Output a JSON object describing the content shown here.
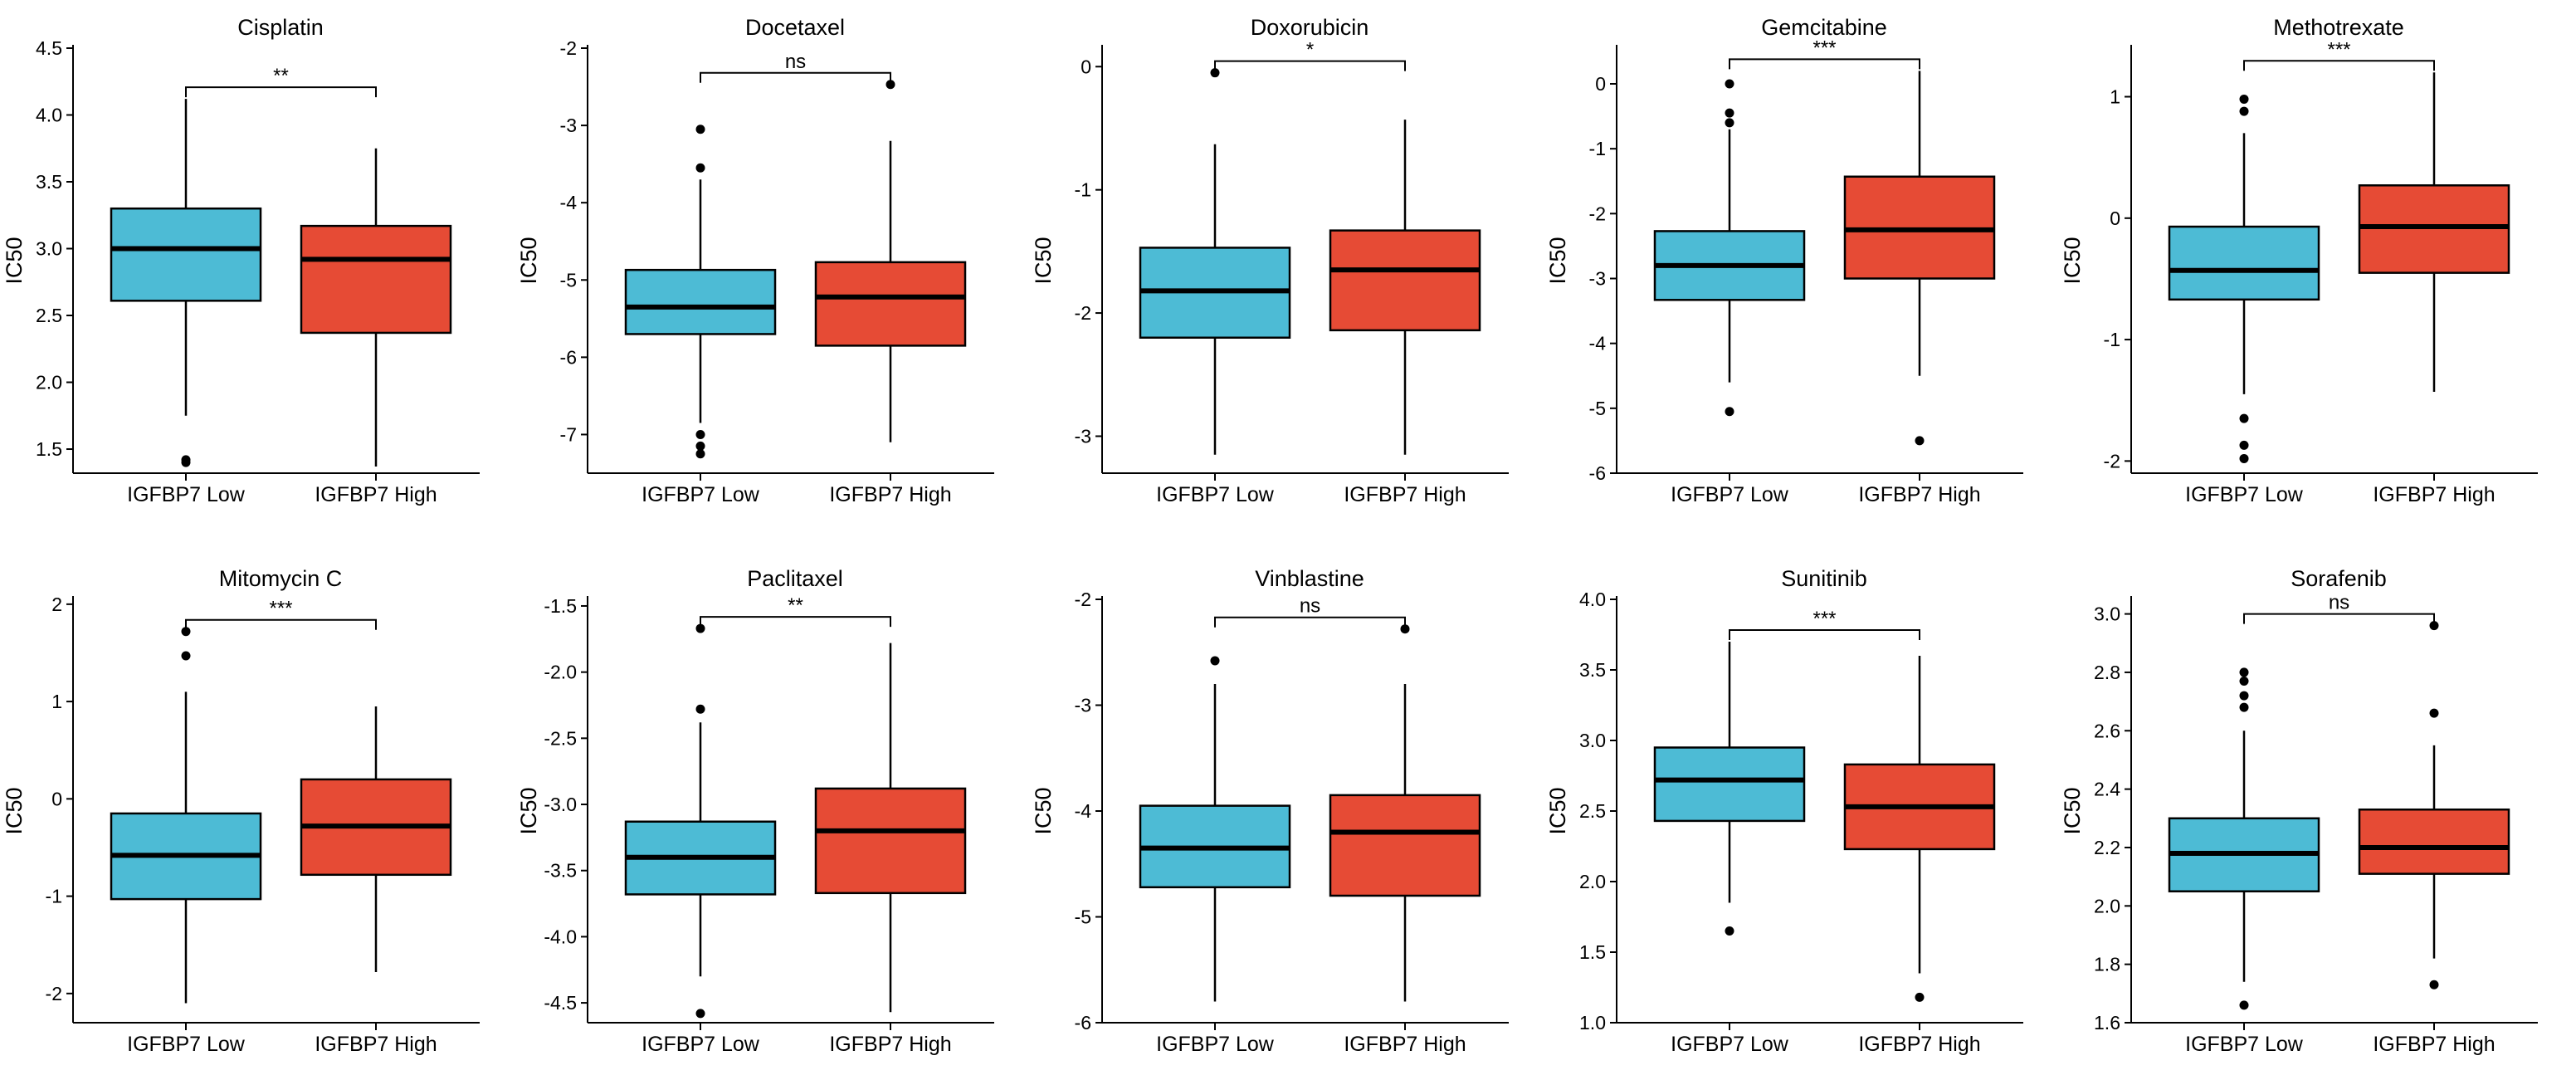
{
  "colors": {
    "low": "#4DBBD5",
    "high": "#E64B35",
    "stroke": "#000000"
  },
  "chart_data": [
    {
      "type": "box",
      "title": "Cisplatin",
      "ylabel": "IC50",
      "categories": [
        "IGFBP7 Low",
        "IGFBP7 High"
      ],
      "ylim": [
        1.32,
        4.5
      ],
      "yticks": [
        1.5,
        2.0,
        2.5,
        3.0,
        3.5,
        4.0,
        4.5
      ],
      "ytick_labels": [
        "1.5",
        "2.0",
        "2.5",
        "3.0",
        "3.5",
        "4.0",
        "4.5"
      ],
      "significance": "**",
      "boxes": [
        {
          "group": "IGFBP7 Low",
          "whisker_low": 1.75,
          "q1": 2.61,
          "median": 3.0,
          "q3": 3.3,
          "whisker_high": 4.12,
          "outliers": [
            1.42,
            1.4
          ]
        },
        {
          "group": "IGFBP7 High",
          "whisker_low": 1.37,
          "q1": 2.37,
          "median": 2.92,
          "q3": 3.17,
          "whisker_high": 3.75,
          "outliers": []
        }
      ]
    },
    {
      "type": "box",
      "title": "Docetaxel",
      "ylabel": "IC50",
      "categories": [
        "IGFBP7 Low",
        "IGFBP7 High"
      ],
      "ylim": [
        -7.5,
        -2.0
      ],
      "yticks": [
        -7,
        -6,
        -5,
        -4,
        -3,
        -2
      ],
      "ytick_labels": [
        "-7",
        "-6",
        "-5",
        "-4",
        "-3",
        "-2"
      ],
      "significance": "ns",
      "boxes": [
        {
          "group": "IGFBP7 Low",
          "whisker_low": -6.85,
          "q1": -5.7,
          "median": -5.35,
          "q3": -4.87,
          "whisker_high": -3.7,
          "outliers": [
            -3.05,
            -3.55,
            -7.0,
            -7.15,
            -7.25
          ]
        },
        {
          "group": "IGFBP7 High",
          "whisker_low": -7.1,
          "q1": -5.85,
          "median": -5.22,
          "q3": -4.77,
          "whisker_high": -3.2,
          "outliers": [
            -2.47
          ]
        }
      ]
    },
    {
      "type": "box",
      "title": "Doxorubicin",
      "ylabel": "IC50",
      "categories": [
        "IGFBP7 Low",
        "IGFBP7 High"
      ],
      "ylim": [
        -3.3,
        0.15
      ],
      "yticks": [
        -3,
        -2,
        -1,
        0
      ],
      "ytick_labels": [
        "-3",
        "-2",
        "-1",
        "0"
      ],
      "significance": "*",
      "boxes": [
        {
          "group": "IGFBP7 Low",
          "whisker_low": -3.15,
          "q1": -2.2,
          "median": -1.82,
          "q3": -1.47,
          "whisker_high": -0.63,
          "outliers": [
            -0.05
          ]
        },
        {
          "group": "IGFBP7 High",
          "whisker_low": -3.15,
          "q1": -2.14,
          "median": -1.65,
          "q3": -1.33,
          "whisker_high": -0.43,
          "outliers": []
        }
      ]
    },
    {
      "type": "box",
      "title": "Gemcitabine",
      "ylabel": "IC50",
      "categories": [
        "IGFBP7 Low",
        "IGFBP7 High"
      ],
      "ylim": [
        -6.0,
        0.55
      ],
      "yticks": [
        -6,
        -5,
        -4,
        -3,
        -2,
        -1,
        0
      ],
      "ytick_labels": [
        "-6",
        "-5",
        "-4",
        "-3",
        "-2",
        "-1",
        "0"
      ],
      "significance": "***",
      "boxes": [
        {
          "group": "IGFBP7 Low",
          "whisker_low": -4.6,
          "q1": -3.33,
          "median": -2.8,
          "q3": -2.27,
          "whisker_high": -0.7,
          "outliers": [
            0.0,
            -0.45,
            -0.6,
            -5.05
          ]
        },
        {
          "group": "IGFBP7 High",
          "whisker_low": -4.5,
          "q1": -3.0,
          "median": -2.25,
          "q3": -1.43,
          "whisker_high": 0.2,
          "outliers": [
            -5.5
          ]
        }
      ]
    },
    {
      "type": "box",
      "title": "Methotrexate",
      "ylabel": "IC50",
      "categories": [
        "IGFBP7 Low",
        "IGFBP7 High"
      ],
      "ylim": [
        -2.1,
        1.4
      ],
      "yticks": [
        -2,
        -1,
        0,
        1
      ],
      "ytick_labels": [
        "-2",
        "-1",
        "0",
        "1"
      ],
      "significance": "***",
      "boxes": [
        {
          "group": "IGFBP7 Low",
          "whisker_low": -1.45,
          "q1": -0.67,
          "median": -0.43,
          "q3": -0.07,
          "whisker_high": 0.7,
          "outliers": [
            0.98,
            0.88,
            -1.65,
            -1.87,
            -1.98
          ]
        },
        {
          "group": "IGFBP7 High",
          "whisker_low": -1.43,
          "q1": -0.45,
          "median": -0.07,
          "q3": 0.27,
          "whisker_high": 1.2,
          "outliers": []
        }
      ]
    },
    {
      "type": "box",
      "title": "Mitomycin C",
      "ylabel": "IC50",
      "categories": [
        "IGFBP7 Low",
        "IGFBP7 High"
      ],
      "ylim": [
        -2.3,
        2.05
      ],
      "yticks": [
        -2,
        -1,
        0,
        1,
        2
      ],
      "ytick_labels": [
        "-2",
        "-1",
        "0",
        "1",
        "2"
      ],
      "significance": "***",
      "boxes": [
        {
          "group": "IGFBP7 Low",
          "whisker_low": -2.1,
          "q1": -1.03,
          "median": -0.58,
          "q3": -0.15,
          "whisker_high": 1.1,
          "outliers": [
            1.72,
            1.47
          ]
        },
        {
          "group": "IGFBP7 High",
          "whisker_low": -1.78,
          "q1": -0.78,
          "median": -0.28,
          "q3": 0.2,
          "whisker_high": 0.95,
          "outliers": []
        }
      ]
    },
    {
      "type": "box",
      "title": "Paclitaxel",
      "ylabel": "IC50",
      "categories": [
        "IGFBP7 Low",
        "IGFBP7 High"
      ],
      "ylim": [
        -4.65,
        -1.45
      ],
      "yticks": [
        -4.5,
        -4.0,
        -3.5,
        -3.0,
        -2.5,
        -2.0,
        -1.5
      ],
      "ytick_labels": [
        "-4.5",
        "-4.0",
        "-3.5",
        "-3.0",
        "-2.5",
        "-2.0",
        "-1.5"
      ],
      "significance": "**",
      "boxes": [
        {
          "group": "IGFBP7 Low",
          "whisker_low": -4.3,
          "q1": -3.68,
          "median": -3.4,
          "q3": -3.13,
          "whisker_high": -2.38,
          "outliers": [
            -1.67,
            -2.28,
            -4.58
          ]
        },
        {
          "group": "IGFBP7 High",
          "whisker_low": -4.57,
          "q1": -3.67,
          "median": -3.2,
          "q3": -2.88,
          "whisker_high": -1.78,
          "outliers": []
        }
      ]
    },
    {
      "type": "box",
      "title": "Vinblastine",
      "ylabel": "IC50",
      "categories": [
        "IGFBP7 Low",
        "IGFBP7 High"
      ],
      "ylim": [
        -6.0,
        -2.0
      ],
      "yticks": [
        -6,
        -5,
        -4,
        -3,
        -2
      ],
      "ytick_labels": [
        "-6",
        "-5",
        "-4",
        "-3",
        "-2"
      ],
      "significance": "ns",
      "boxes": [
        {
          "group": "IGFBP7 Low",
          "whisker_low": -5.8,
          "q1": -4.72,
          "median": -4.35,
          "q3": -3.95,
          "whisker_high": -2.8,
          "outliers": [
            -2.58
          ]
        },
        {
          "group": "IGFBP7 High",
          "whisker_low": -5.8,
          "q1": -4.8,
          "median": -4.2,
          "q3": -3.85,
          "whisker_high": -2.8,
          "outliers": [
            -2.28
          ]
        }
      ]
    },
    {
      "type": "box",
      "title": "Sunitinib",
      "ylabel": "IC50",
      "categories": [
        "IGFBP7 Low",
        "IGFBP7 High"
      ],
      "ylim": [
        1.0,
        4.0
      ],
      "yticks": [
        1.0,
        1.5,
        2.0,
        2.5,
        3.0,
        3.5,
        4.0
      ],
      "ytick_labels": [
        "1.0",
        "1.5",
        "2.0",
        "2.5",
        "3.0",
        "3.5",
        "4.0"
      ],
      "significance": "***",
      "boxes": [
        {
          "group": "IGFBP7 Low",
          "whisker_low": 1.85,
          "q1": 2.43,
          "median": 2.72,
          "q3": 2.95,
          "whisker_high": 3.7,
          "outliers": [
            1.65
          ]
        },
        {
          "group": "IGFBP7 High",
          "whisker_low": 1.35,
          "q1": 2.23,
          "median": 2.53,
          "q3": 2.83,
          "whisker_high": 3.6,
          "outliers": [
            1.18
          ]
        }
      ]
    },
    {
      "type": "box",
      "title": "Sorafenib",
      "ylabel": "IC50",
      "categories": [
        "IGFBP7 Low",
        "IGFBP7 High"
      ],
      "ylim": [
        1.6,
        3.05
      ],
      "yticks": [
        1.6,
        1.8,
        2.0,
        2.2,
        2.4,
        2.6,
        2.8,
        3.0
      ],
      "ytick_labels": [
        "1.6",
        "1.8",
        "2.0",
        "2.2",
        "2.4",
        "2.6",
        "2.8",
        "3.0"
      ],
      "significance": "ns",
      "boxes": [
        {
          "group": "IGFBP7 Low",
          "whisker_low": 1.74,
          "q1": 2.05,
          "median": 2.18,
          "q3": 2.3,
          "whisker_high": 2.6,
          "outliers": [
            2.8,
            2.77,
            2.72,
            2.68,
            1.66
          ]
        },
        {
          "group": "IGFBP7 High",
          "whisker_low": 1.82,
          "q1": 2.11,
          "median": 2.2,
          "q3": 2.33,
          "whisker_high": 2.55,
          "outliers": [
            2.96,
            2.66,
            1.73
          ]
        }
      ]
    }
  ]
}
